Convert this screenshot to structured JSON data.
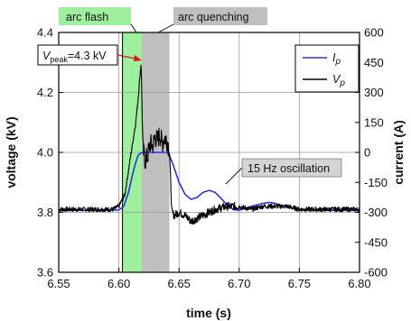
{
  "chart_data": {
    "type": "line",
    "title": "",
    "xlabel": "time (s)",
    "ylabel_left": "voltage (kV)",
    "ylabel_right": "current (A)",
    "xlim": [
      6.55,
      6.8
    ],
    "ylim_left": [
      3.6,
      4.4
    ],
    "ylim_right": [
      -600,
      600
    ],
    "x_ticks": [
      "6.55",
      "6.60",
      "6.65",
      "6.70",
      "6.75",
      "6.80"
    ],
    "x_tick_values": [
      6.55,
      6.6,
      6.65,
      6.7,
      6.75,
      6.8
    ],
    "y_left_ticks": [
      "3.6",
      "3.8",
      "4.0",
      "4.2",
      "4.4"
    ],
    "y_left_tick_values": [
      3.6,
      3.8,
      4.0,
      4.2,
      4.4
    ],
    "y_right_ticks": [
      "-600",
      "-450",
      "-300",
      "-150",
      "0",
      "150",
      "300",
      "450",
      "600"
    ],
    "y_right_tick_values": [
      -600,
      -450,
      -300,
      -150,
      0,
      150,
      300,
      450,
      600
    ],
    "grid": true,
    "legend_position": "top-right",
    "legend": [
      {
        "label": "I",
        "subscript": "p",
        "color": "#2a33e0"
      },
      {
        "label": "V",
        "subscript": "p",
        "color": "#000000"
      }
    ],
    "regions": [
      {
        "name": "arc flash",
        "x_start": 6.603,
        "x_end": 6.619,
        "color": "#9ef09e"
      },
      {
        "name": "arc quenching",
        "x_start": 6.619,
        "x_end": 6.642,
        "color": "#bfbfbf"
      }
    ],
    "annotations": {
      "peak_label_main": "V",
      "peak_label_sub": "peak",
      "peak_label_value": "=4.3 kV",
      "peak_point": {
        "x": 6.618,
        "y": 4.3
      },
      "oscillation_label": "15 Hz oscillation",
      "oscillation_target": {
        "x": 6.675,
        "y": 3.89
      }
    },
    "series": [
      {
        "name": "V",
        "subscript": "p",
        "axis": "left",
        "color": "#000000",
        "x": [
          6.55,
          6.56,
          6.57,
          6.58,
          6.59,
          6.595,
          6.6,
          6.605,
          6.608,
          6.611,
          6.614,
          6.616,
          6.618,
          6.6185,
          6.62,
          6.622,
          6.624,
          6.626,
          6.628,
          6.63,
          6.632,
          6.634,
          6.636,
          6.638,
          6.64,
          6.642,
          6.644,
          6.646,
          6.65,
          6.655,
          6.66,
          6.665,
          6.67,
          6.675,
          6.68,
          6.69,
          6.7,
          6.71,
          6.72,
          6.73,
          6.74,
          6.75,
          6.76,
          6.77,
          6.78,
          6.79,
          6.8
        ],
        "y": [
          3.81,
          3.81,
          3.81,
          3.81,
          3.81,
          3.81,
          3.82,
          3.86,
          3.94,
          4.02,
          4.1,
          4.18,
          4.28,
          4.3,
          4.01,
          3.97,
          3.99,
          4.03,
          4.02,
          4.05,
          4.04,
          4.06,
          4.03,
          4.05,
          4.04,
          4.01,
          3.8,
          3.79,
          3.8,
          3.79,
          3.77,
          3.78,
          3.79,
          3.8,
          3.81,
          3.82,
          3.82,
          3.81,
          3.82,
          3.82,
          3.82,
          3.81,
          3.81,
          3.81,
          3.81,
          3.81,
          3.81
        ]
      },
      {
        "name": "I",
        "subscript": "p",
        "axis": "right",
        "color": "#2a33e0",
        "x": [
          6.55,
          6.56,
          6.57,
          6.58,
          6.59,
          6.6,
          6.604,
          6.608,
          6.611,
          6.614,
          6.616,
          6.619,
          6.62,
          6.63,
          6.641,
          6.645,
          6.65,
          6.655,
          6.66,
          6.665,
          6.67,
          6.675,
          6.68,
          6.685,
          6.69,
          6.695,
          6.7,
          6.705,
          6.71,
          6.72,
          6.725,
          6.73,
          6.735,
          6.74,
          6.75,
          6.76,
          6.77,
          6.78,
          6.79,
          6.8
        ],
        "y": [
          -290,
          -290,
          -290,
          -290,
          -290,
          -288,
          -270,
          -200,
          -120,
          -50,
          -15,
          0,
          0,
          0,
          0,
          -60,
          -150,
          -210,
          -235,
          -225,
          -200,
          -190,
          -200,
          -230,
          -265,
          -285,
          -290,
          -280,
          -270,
          -255,
          -250,
          -255,
          -265,
          -275,
          -285,
          -290,
          -290,
          -290,
          -290,
          -290
        ]
      }
    ]
  }
}
